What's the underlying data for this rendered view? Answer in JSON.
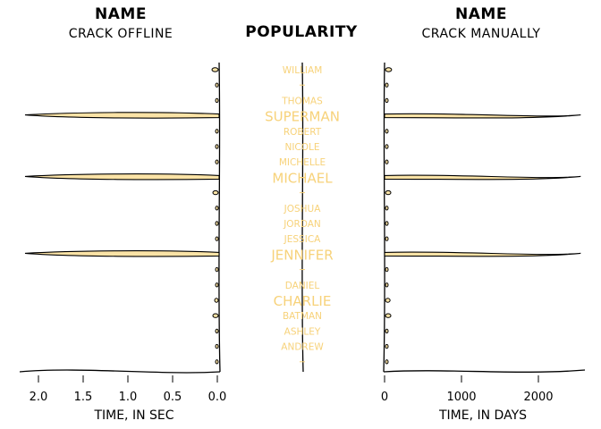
{
  "titles": {
    "left_name": "NAME",
    "left_sub": "CRACK OFFLINE",
    "center": "POPULARITY",
    "right_name": "NAME",
    "right_sub": "CRACK MANUALLY"
  },
  "colors": {
    "fill": "#fbe3a6",
    "label": "#f7d27a",
    "stroke": "#000000"
  },
  "chart_data": {
    "type": "bar",
    "names": [
      "WILLIAM",
      "",
      "THOMAS",
      "SUPERMAN",
      "ROBERT",
      "NICOLE",
      "MICHELLE",
      "MICHAEL",
      "",
      "JOSHUA",
      "JORDAN",
      "JESSICA",
      "JENNIFER",
      "",
      "DANIEL",
      "CHARLIE",
      "BATMAN",
      "ASHLEY",
      "ANDREW",
      ""
    ],
    "popular": [
      false,
      false,
      false,
      true,
      false,
      false,
      false,
      true,
      false,
      false,
      false,
      false,
      true,
      false,
      false,
      true,
      false,
      false,
      false,
      false
    ],
    "left": {
      "xlabel": "TIME, IN SEC",
      "xlim": [
        2.0,
        0.0
      ],
      "ticks": [
        2.0,
        1.5,
        1.0,
        0.5,
        0.0
      ],
      "tick_labels": [
        "2.0",
        "1.5",
        "1.0",
        "0.5",
        "0.0"
      ],
      "values": [
        0.05,
        0.01,
        0.01,
        2.15,
        0.01,
        0.01,
        0.01,
        2.15,
        0.04,
        0.01,
        0.01,
        0.01,
        2.15,
        0.01,
        0.01,
        0.02,
        0.04,
        0.01,
        0.01,
        0.01
      ]
    },
    "right": {
      "xlabel": "TIME, IN DAYS",
      "xlim": [
        0,
        2600
      ],
      "ticks": [
        0,
        1000,
        2000
      ],
      "tick_labels": [
        "0",
        "1000",
        "2000"
      ],
      "values": [
        80,
        15,
        15,
        2550,
        15,
        15,
        15,
        2550,
        70,
        15,
        15,
        15,
        2550,
        15,
        15,
        60,
        70,
        15,
        15,
        15
      ]
    }
  }
}
